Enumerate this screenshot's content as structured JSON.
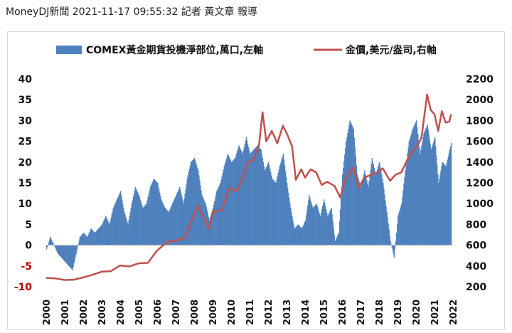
{
  "article": {
    "byline": "MoneyDJ新聞 2021-11-17 09:55:32 記者 黃文章 報導"
  },
  "colors": {
    "bars": "#4f81bd",
    "line": "#c0504d",
    "negative_tick": "#c00000",
    "tick": "#111111"
  },
  "chart_data": {
    "type": "bar+line",
    "title": "",
    "xlabel": "",
    "ylabel": "",
    "y2label": "",
    "legend_position": "top",
    "grid": false,
    "x_ticks": [
      "2000",
      "2001",
      "2002",
      "2003",
      "2004",
      "2005",
      "2006",
      "2007",
      "2008",
      "2009",
      "2010",
      "2011",
      "2012",
      "2013",
      "2014",
      "2015",
      "2016",
      "2017",
      "2018",
      "2019",
      "2020",
      "2021",
      "2022"
    ],
    "y_left_ticks": [
      "40",
      "35",
      "30",
      "25",
      "20",
      "15",
      "10",
      "5",
      "0",
      "-5",
      "-10"
    ],
    "y_right_ticks": [
      "2200",
      "2000",
      "1800",
      "1600",
      "1400",
      "1200",
      "1000",
      "800",
      "600",
      "400",
      "200"
    ],
    "ylim_left": [
      -10,
      40
    ],
    "ylim_right": [
      200,
      2200
    ],
    "xlim": [
      2000.0,
      2022.0
    ],
    "series": [
      {
        "name": "COMEX黃金期貨投機淨部位,萬口,左軸",
        "type": "bar",
        "axis": "left",
        "points": [
          [
            2000.0,
            -1
          ],
          [
            2000.2,
            2
          ],
          [
            2000.4,
            0
          ],
          [
            2000.6,
            -2
          ],
          [
            2000.8,
            -3
          ],
          [
            2001.0,
            -4
          ],
          [
            2001.2,
            -5
          ],
          [
            2001.4,
            -6
          ],
          [
            2001.5,
            -4
          ],
          [
            2001.6,
            -2
          ],
          [
            2001.8,
            2
          ],
          [
            2002.0,
            3
          ],
          [
            2002.2,
            2
          ],
          [
            2002.4,
            4
          ],
          [
            2002.6,
            3
          ],
          [
            2002.8,
            4
          ],
          [
            2003.0,
            5
          ],
          [
            2003.2,
            7
          ],
          [
            2003.4,
            5
          ],
          [
            2003.6,
            9
          ],
          [
            2003.8,
            11
          ],
          [
            2004.0,
            13
          ],
          [
            2004.2,
            8
          ],
          [
            2004.4,
            5
          ],
          [
            2004.6,
            10
          ],
          [
            2004.8,
            14
          ],
          [
            2005.0,
            12
          ],
          [
            2005.2,
            9
          ],
          [
            2005.4,
            10
          ],
          [
            2005.6,
            14
          ],
          [
            2005.8,
            16
          ],
          [
            2006.0,
            15
          ],
          [
            2006.2,
            11
          ],
          [
            2006.4,
            9
          ],
          [
            2006.6,
            8
          ],
          [
            2006.8,
            10
          ],
          [
            2007.0,
            12
          ],
          [
            2007.2,
            14
          ],
          [
            2007.4,
            10
          ],
          [
            2007.6,
            16
          ],
          [
            2007.8,
            20
          ],
          [
            2008.0,
            21
          ],
          [
            2008.2,
            18
          ],
          [
            2008.4,
            12
          ],
          [
            2008.6,
            10
          ],
          [
            2008.8,
            6
          ],
          [
            2009.0,
            9
          ],
          [
            2009.2,
            13
          ],
          [
            2009.4,
            15
          ],
          [
            2009.6,
            19
          ],
          [
            2009.8,
            22
          ],
          [
            2010.0,
            20
          ],
          [
            2010.2,
            21
          ],
          [
            2010.4,
            24
          ],
          [
            2010.6,
            22
          ],
          [
            2010.8,
            26
          ],
          [
            2011.0,
            22
          ],
          [
            2011.2,
            23
          ],
          [
            2011.4,
            24
          ],
          [
            2011.6,
            23
          ],
          [
            2011.8,
            18
          ],
          [
            2012.0,
            20
          ],
          [
            2012.2,
            16
          ],
          [
            2012.4,
            15
          ],
          [
            2012.6,
            19
          ],
          [
            2012.8,
            22
          ],
          [
            2013.0,
            15
          ],
          [
            2013.2,
            9
          ],
          [
            2013.4,
            4
          ],
          [
            2013.6,
            5
          ],
          [
            2013.8,
            4
          ],
          [
            2014.0,
            6
          ],
          [
            2014.2,
            12
          ],
          [
            2014.4,
            9
          ],
          [
            2014.6,
            10
          ],
          [
            2014.8,
            7
          ],
          [
            2015.0,
            11
          ],
          [
            2015.2,
            7
          ],
          [
            2015.4,
            9
          ],
          [
            2015.6,
            1
          ],
          [
            2015.8,
            3
          ],
          [
            2016.0,
            17
          ],
          [
            2016.2,
            25
          ],
          [
            2016.4,
            30
          ],
          [
            2016.6,
            28
          ],
          [
            2016.8,
            17
          ],
          [
            2017.0,
            14
          ],
          [
            2017.2,
            18
          ],
          [
            2017.4,
            14
          ],
          [
            2017.6,
            21
          ],
          [
            2017.8,
            17
          ],
          [
            2018.0,
            20
          ],
          [
            2018.2,
            15
          ],
          [
            2018.4,
            8
          ],
          [
            2018.6,
            1
          ],
          [
            2018.8,
            -3
          ],
          [
            2019.0,
            7
          ],
          [
            2019.2,
            10
          ],
          [
            2019.4,
            18
          ],
          [
            2019.6,
            25
          ],
          [
            2019.8,
            28
          ],
          [
            2020.0,
            30
          ],
          [
            2020.2,
            22
          ],
          [
            2020.4,
            27
          ],
          [
            2020.6,
            29
          ],
          [
            2020.8,
            23
          ],
          [
            2021.0,
            26
          ],
          [
            2021.2,
            15
          ],
          [
            2021.4,
            20
          ],
          [
            2021.6,
            19
          ],
          [
            2021.8,
            23
          ],
          [
            2021.9,
            25
          ]
        ]
      },
      {
        "name": "金價,美元/盎司,右軸",
        "type": "line",
        "axis": "right",
        "points": [
          [
            2000.0,
            285
          ],
          [
            2000.5,
            280
          ],
          [
            2001.0,
            265
          ],
          [
            2001.5,
            268
          ],
          [
            2002.0,
            290
          ],
          [
            2002.5,
            315
          ],
          [
            2003.0,
            345
          ],
          [
            2003.5,
            350
          ],
          [
            2004.0,
            405
          ],
          [
            2004.5,
            395
          ],
          [
            2005.0,
            425
          ],
          [
            2005.5,
            430
          ],
          [
            2006.0,
            550
          ],
          [
            2006.5,
            625
          ],
          [
            2007.0,
            645
          ],
          [
            2007.5,
            670
          ],
          [
            2008.0,
            900
          ],
          [
            2008.2,
            980
          ],
          [
            2008.5,
            870
          ],
          [
            2008.8,
            760
          ],
          [
            2009.0,
            920
          ],
          [
            2009.5,
            940
          ],
          [
            2009.9,
            1150
          ],
          [
            2010.3,
            1120
          ],
          [
            2010.6,
            1230
          ],
          [
            2010.9,
            1400
          ],
          [
            2011.2,
            1420
          ],
          [
            2011.5,
            1550
          ],
          [
            2011.7,
            1880
          ],
          [
            2011.9,
            1600
          ],
          [
            2012.2,
            1700
          ],
          [
            2012.5,
            1580
          ],
          [
            2012.8,
            1750
          ],
          [
            2013.0,
            1680
          ],
          [
            2013.3,
            1550
          ],
          [
            2013.5,
            1230
          ],
          [
            2013.8,
            1330
          ],
          [
            2014.0,
            1250
          ],
          [
            2014.3,
            1330
          ],
          [
            2014.6,
            1300
          ],
          [
            2014.9,
            1180
          ],
          [
            2015.2,
            1210
          ],
          [
            2015.6,
            1170
          ],
          [
            2015.9,
            1060
          ],
          [
            2016.2,
            1240
          ],
          [
            2016.6,
            1350
          ],
          [
            2016.9,
            1150
          ],
          [
            2017.2,
            1250
          ],
          [
            2017.6,
            1280
          ],
          [
            2017.9,
            1300
          ],
          [
            2018.2,
            1340
          ],
          [
            2018.6,
            1220
          ],
          [
            2018.9,
            1280
          ],
          [
            2019.2,
            1300
          ],
          [
            2019.5,
            1410
          ],
          [
            2019.8,
            1500
          ],
          [
            2020.1,
            1560
          ],
          [
            2020.3,
            1640
          ],
          [
            2020.6,
            2050
          ],
          [
            2020.8,
            1900
          ],
          [
            2021.0,
            1860
          ],
          [
            2021.2,
            1700
          ],
          [
            2021.4,
            1890
          ],
          [
            2021.6,
            1780
          ],
          [
            2021.8,
            1790
          ],
          [
            2021.9,
            1860
          ]
        ]
      }
    ]
  }
}
